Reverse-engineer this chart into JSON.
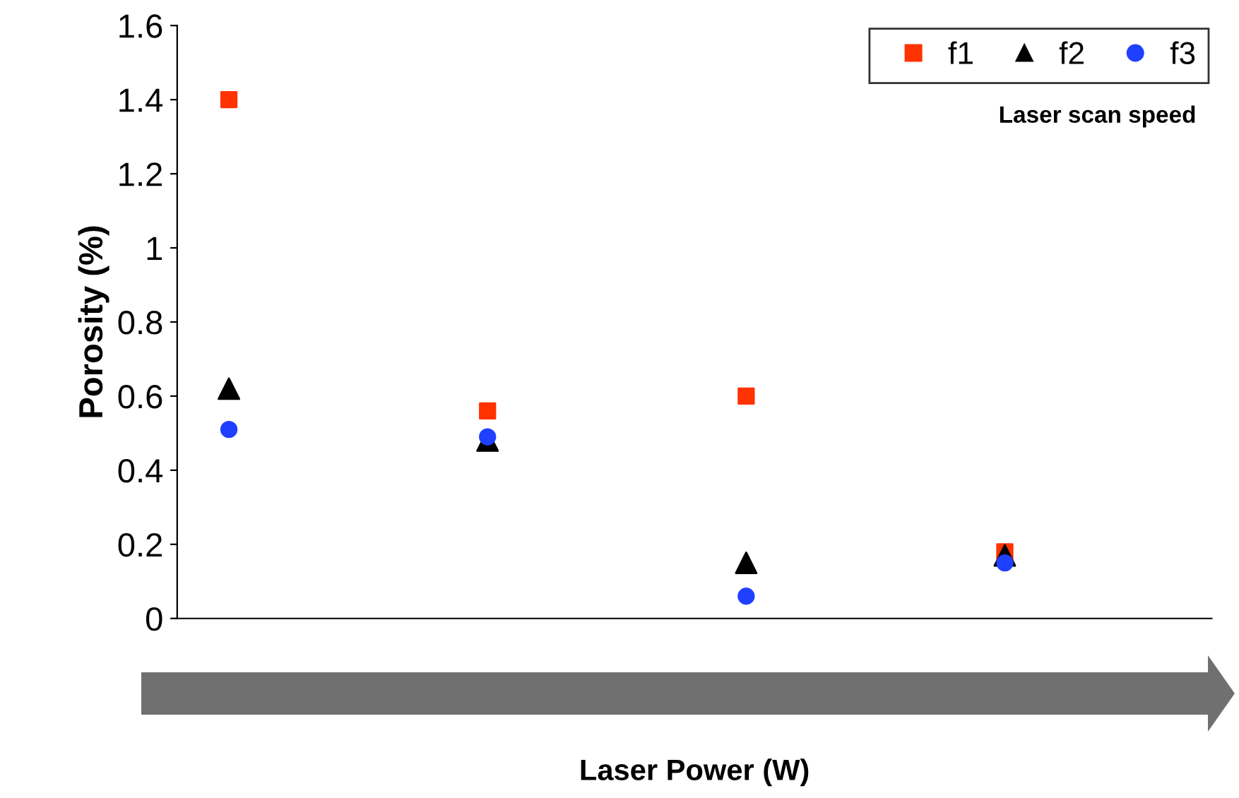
{
  "chart_data": {
    "type": "scatter",
    "xlabel": "Laser Power (W)",
    "ylabel": "Porosity (%)",
    "legend_title": "Laser scan speed",
    "categories": [
      null,
      null,
      null,
      null
    ],
    "series": [
      {
        "name": "f1",
        "color": "#ff3300",
        "marker": "square",
        "values": [
          1.4,
          0.56,
          0.6,
          0.18
        ]
      },
      {
        "name": "f2",
        "color": "#000000",
        "marker": "triangle",
        "values": [
          0.62,
          0.48,
          0.15,
          0.17
        ]
      },
      {
        "name": "f3",
        "color": "#2040ff",
        "marker": "circle",
        "values": [
          0.51,
          0.49,
          0.06,
          0.15
        ]
      }
    ],
    "ylim": [
      0,
      1.6
    ],
    "yticks": [
      0,
      0.2,
      0.4,
      0.6,
      0.8,
      1,
      1.2,
      1.4,
      1.6
    ],
    "grid": false,
    "legend": "top right"
  }
}
